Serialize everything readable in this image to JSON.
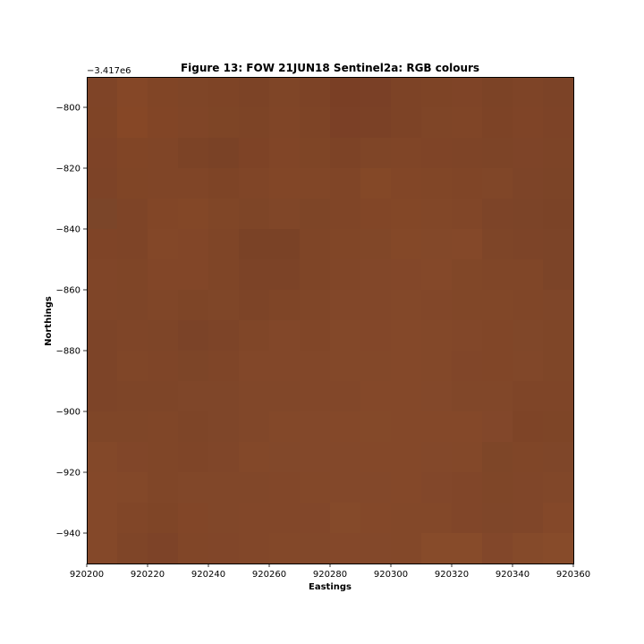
{
  "chart_data": {
    "type": "heatmap",
    "title": "Figure 13: FOW 21JUN18  Sentinel2a: RGB colours",
    "xlabel": "Eastings",
    "ylabel": "Northings",
    "y_offset_label": "−3.417e6",
    "xlim": [
      920200,
      920360
    ],
    "ylim": [
      -950,
      -790
    ],
    "x_ticks": [
      920200,
      920220,
      920240,
      920260,
      920280,
      920300,
      920320,
      920340,
      920360
    ],
    "x_tick_labels": [
      "920200",
      "920220",
      "920240",
      "920260",
      "920280",
      "920300",
      "920320",
      "920340",
      "920360"
    ],
    "y_ticks": [
      -800,
      -820,
      -840,
      -860,
      -880,
      -900,
      -920,
      -940
    ],
    "y_tick_labels": [
      "−800",
      "−820",
      "−840",
      "−860",
      "−880",
      "−900",
      "−920",
      "−940"
    ],
    "grid": false,
    "pixel_size": 10,
    "cells": [
      [
        "#7f4427",
        "#854727",
        "#814526",
        "#7f4527",
        "#7e4426",
        "#7c4326",
        "#7f4527",
        "#7d4326",
        "#7a3f25",
        "#7a4026",
        "#7d4326",
        "#7e4426",
        "#7f4427",
        "#7c4326",
        "#7e4427",
        "#7c4327"
      ],
      [
        "#7f4426",
        "#864726",
        "#824526",
        "#804527",
        "#7e4526",
        "#7d4426",
        "#804527",
        "#7e4426",
        "#7b4026",
        "#7b4126",
        "#7d4326",
        "#7f4527",
        "#804527",
        "#7d4326",
        "#7f4427",
        "#7d4327"
      ],
      [
        "#7e4327",
        "#814526",
        "#804527",
        "#7c4326",
        "#7a4226",
        "#7e4326",
        "#814527",
        "#7f4526",
        "#7d4326",
        "#7f4527",
        "#804527",
        "#7f4427",
        "#7e4427",
        "#7d4427",
        "#7e4428",
        "#7d4427"
      ],
      [
        "#7d4327",
        "#804526",
        "#804527",
        "#804527",
        "#7e4426",
        "#804527",
        "#824627",
        "#814627",
        "#804527",
        "#844827",
        "#824627",
        "#814627",
        "#804527",
        "#804628",
        "#7d4428",
        "#7c4427"
      ],
      [
        "#7b4529",
        "#7e4427",
        "#824627",
        "#834727",
        "#804627",
        "#7e4527",
        "#804628",
        "#7e4527",
        "#804527",
        "#824627",
        "#834727",
        "#824728",
        "#814628",
        "#7d4428",
        "#7c4428",
        "#7b4327"
      ],
      [
        "#7f4427",
        "#7e4427",
        "#834728",
        "#824628",
        "#7f4527",
        "#7a4226",
        "#7a4226",
        "#7f4527",
        "#814627",
        "#814728",
        "#844828",
        "#834829",
        "#844829",
        "#7e4528",
        "#7d4428",
        "#7c4428"
      ],
      [
        "#804528",
        "#7f4527",
        "#824628",
        "#824628",
        "#7f4527",
        "#7c4327",
        "#7c4327",
        "#7f4527",
        "#814628",
        "#824729",
        "#834729",
        "#844829",
        "#814728",
        "#804628",
        "#804628",
        "#7c4428"
      ],
      [
        "#7f4528",
        "#7e4528",
        "#804628",
        "#7e4527",
        "#7f4628",
        "#7d4427",
        "#7f4527",
        "#804628",
        "#824729",
        "#824729",
        "#834829",
        "#824729",
        "#814728",
        "#814728",
        "#804628",
        "#7f4629"
      ],
      [
        "#7d4428",
        "#7f4528",
        "#7e4528",
        "#7b4328",
        "#7d4428",
        "#804628",
        "#824729",
        "#814628",
        "#834829",
        "#834729",
        "#844829",
        "#834829",
        "#824729",
        "#814628",
        "#804729",
        "#7f4628"
      ],
      [
        "#7d4428",
        "#804628",
        "#7f4528",
        "#7d4528",
        "#7f4528",
        "#824729",
        "#824729",
        "#824729",
        "#834829",
        "#834829",
        "#844829",
        "#834829",
        "#814629",
        "#814628",
        "#814729",
        "#7f4628"
      ],
      [
        "#7d4428",
        "#7e4528",
        "#7e4528",
        "#7f4629",
        "#7f4629",
        "#814729",
        "#814729",
        "#824729",
        "#824729",
        "#844829",
        "#844829",
        "#83482a",
        "#814729",
        "#814729",
        "#7f4528",
        "#7f4528"
      ],
      [
        "#7f4628",
        "#7f4628",
        "#804628",
        "#7e4528",
        "#7f4629",
        "#814729",
        "#834829",
        "#83482a",
        "#844829",
        "#844929",
        "#844829",
        "#844829",
        "#844829",
        "#82472a",
        "#7e4427",
        "#7e4527"
      ],
      [
        "#834829",
        "#814629",
        "#804628",
        "#7f4528",
        "#804629",
        "#834829",
        "#82482a",
        "#83482a",
        "#83482a",
        "#844829",
        "#844829",
        "#83482a",
        "#834829",
        "#7e4628",
        "#804628",
        "#7f4629"
      ],
      [
        "#844829",
        "#834829",
        "#804628",
        "#814729",
        "#814729",
        "#814729",
        "#824729",
        "#834829",
        "#83482a",
        "#83482a",
        "#844829",
        "#82472a",
        "#814629",
        "#7f4628",
        "#804629",
        "#814729"
      ],
      [
        "#844829",
        "#814628",
        "#7f4527",
        "#824628",
        "#814729",
        "#824729",
        "#824729",
        "#82472a",
        "#854a2a",
        "#844829",
        "#834829",
        "#834829",
        "#814629",
        "#7f4629",
        "#804629",
        "#844829"
      ],
      [
        "#844829",
        "#7f4528",
        "#7d4328",
        "#814628",
        "#814629",
        "#824729",
        "#834829",
        "#82482a",
        "#84482a",
        "#83482a",
        "#834829",
        "#874b2a",
        "#874b2a",
        "#82472a",
        "#854a2a",
        "#874b2a"
      ]
    ]
  }
}
